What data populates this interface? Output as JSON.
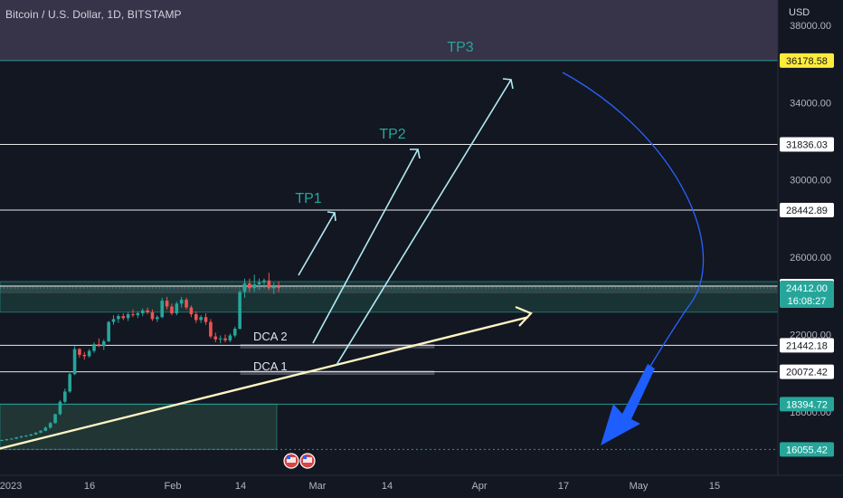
{
  "header": {
    "symbol": "Bitcoin / U.S. Dollar, 1D, BITSTAMP"
  },
  "axis": {
    "unit": "USD",
    "ticks": [
      "38000.00",
      "34000.00",
      "30000.00",
      "26000.00",
      "22000.00",
      "18000.00"
    ],
    "xticks": [
      "2023",
      "16",
      "Feb",
      "14",
      "Mar",
      "14",
      "Apr",
      "17",
      "May",
      "15"
    ]
  },
  "chart_data": {
    "type": "candlestick",
    "ylim": [
      15350,
      38600
    ],
    "candles": [
      [
        16510,
        16560,
        16480,
        16540
      ],
      [
        16540,
        16600,
        16500,
        16580
      ],
      [
        16580,
        16640,
        16550,
        16610
      ],
      [
        16610,
        16700,
        16580,
        16680
      ],
      [
        16680,
        16760,
        16640,
        16730
      ],
      [
        16730,
        16800,
        16700,
        16770
      ],
      [
        16770,
        16860,
        16740,
        16830
      ],
      [
        16830,
        16950,
        16800,
        16920
      ],
      [
        16920,
        17050,
        16890,
        17020
      ],
      [
        17020,
        17250,
        16990,
        17180
      ],
      [
        17180,
        17480,
        17120,
        17420
      ],
      [
        17420,
        17900,
        17380,
        17880
      ],
      [
        17880,
        18600,
        17820,
        18520
      ],
      [
        18520,
        19200,
        18450,
        19050
      ],
      [
        19050,
        20100,
        18980,
        19950
      ],
      [
        19950,
        21400,
        19900,
        21250
      ],
      [
        21250,
        21300,
        20800,
        20950
      ],
      [
        20950,
        21100,
        20700,
        20880
      ],
      [
        20880,
        21250,
        20800,
        21150
      ],
      [
        21150,
        21600,
        21050,
        21500
      ],
      [
        21500,
        21800,
        21350,
        21400
      ],
      [
        21400,
        21750,
        21200,
        21650
      ],
      [
        21650,
        22700,
        21600,
        22650
      ],
      [
        22650,
        23000,
        22500,
        22800
      ],
      [
        22800,
        23050,
        22600,
        22950
      ],
      [
        22950,
        23100,
        22750,
        22850
      ],
      [
        22850,
        23150,
        22700,
        23050
      ],
      [
        23050,
        23300,
        22900,
        23000
      ],
      [
        23000,
        23200,
        22850,
        23100
      ],
      [
        23100,
        23350,
        22950,
        23250
      ],
      [
        23250,
        23400,
        23050,
        23150
      ],
      [
        23150,
        23300,
        22700,
        22800
      ],
      [
        22800,
        23000,
        22650,
        22900
      ],
      [
        22900,
        23900,
        22850,
        23750
      ],
      [
        23750,
        23950,
        23300,
        23450
      ],
      [
        23450,
        23600,
        23000,
        23100
      ],
      [
        23100,
        23700,
        23000,
        23600
      ],
      [
        23600,
        23950,
        23400,
        23800
      ],
      [
        23800,
        23900,
        23300,
        23400
      ],
      [
        23400,
        23500,
        22900,
        23050
      ],
      [
        23050,
        23200,
        22600,
        22750
      ],
      [
        22750,
        23000,
        22600,
        22900
      ],
      [
        22900,
        23100,
        22500,
        22650
      ],
      [
        22650,
        22800,
        21800,
        21900
      ],
      [
        21900,
        22100,
        21600,
        21750
      ],
      [
        21750,
        21950,
        21550,
        21800
      ],
      [
        21800,
        22000,
        21600,
        21700
      ],
      [
        21700,
        22050,
        21600,
        21950
      ],
      [
        21950,
        22400,
        21850,
        22300
      ],
      [
        22300,
        24300,
        22250,
        24200
      ],
      [
        24200,
        24900,
        23900,
        24650
      ],
      [
        24650,
        24900,
        24200,
        24400
      ],
      [
        24400,
        25100,
        24200,
        24600
      ],
      [
        24600,
        24900,
        24300,
        24700
      ],
      [
        24700,
        24900,
        24400,
        24800
      ],
      [
        24800,
        25200,
        24300,
        24400
      ],
      [
        24400,
        24700,
        24100,
        24500
      ],
      [
        24500,
        24750,
        24200,
        24412
      ]
    ],
    "horizontal_levels": [
      {
        "value": 36178.58,
        "label": "36178.58",
        "color": "#26a69a"
      },
      {
        "value": 31836.03,
        "label": "31836.03",
        "color": "#ffffff"
      },
      {
        "value": 28442.89,
        "label": "28442.89",
        "color": "#ffffff"
      },
      {
        "value": 24505.35,
        "label": "24505.35",
        "color": "#ffffff"
      },
      {
        "value": 21442.18,
        "label": "21442.18",
        "color": "#ffffff"
      },
      {
        "value": 20072.42,
        "label": "20072.42",
        "color": "#ffffff"
      },
      {
        "value": 18394.72,
        "label": "18394.72",
        "color": "#26a69a"
      },
      {
        "value": 16055.42,
        "label": "16055.42",
        "color": "#26a69a"
      }
    ],
    "last_price": {
      "value": 24412.0,
      "label": "24412.00",
      "countdown": "16:08:27",
      "color": "#26a69a"
    },
    "annotations": [
      "TP3",
      "TP2",
      "TP1",
      "DCA 2",
      "DCA 1"
    ]
  }
}
